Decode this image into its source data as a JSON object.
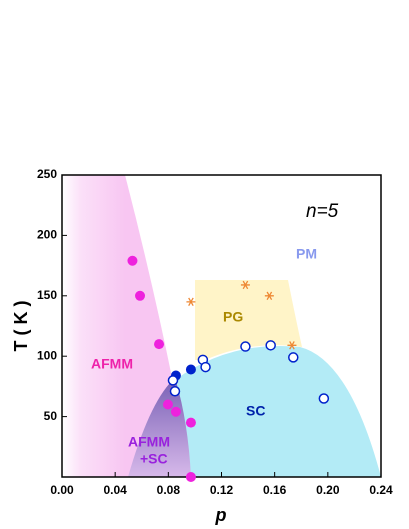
{
  "chart_data": {
    "type": "scatter",
    "x_label": "p",
    "y_label": "T ( K )",
    "xlim": [
      0,
      0.24
    ],
    "ylim": [
      0,
      250
    ],
    "xticks": [
      {
        "value": 0,
        "label": "0.00"
      },
      {
        "value": 0.04,
        "label": "0.04"
      },
      {
        "value": 0.08,
        "label": "0.08"
      },
      {
        "value": 0.12,
        "label": "0.12"
      },
      {
        "value": 0.16,
        "label": "0.16"
      },
      {
        "value": 0.2,
        "label": "0.20"
      },
      {
        "value": 0.24,
        "label": "0.24"
      }
    ],
    "yticks": [
      50,
      100,
      150,
      200,
      250
    ],
    "series": [
      {
        "color": "#ee22dd",
        "marker": "filled",
        "x": [
          0.053,
          0.0587,
          0.073,
          0.0797,
          0.0857,
          0.097,
          0.097
        ],
        "y": [
          179,
          150,
          110,
          60,
          54,
          45,
          0
        ]
      },
      {
        "color": "#0022cc",
        "marker": "filled",
        "x": [
          0.0857,
          0.097
        ],
        "y": [
          84,
          89
        ]
      },
      {
        "color": "#0022cc",
        "marker": "open",
        "x": [
          0.0835,
          0.085,
          0.106,
          0.108,
          0.138,
          0.157,
          0.174,
          0.197
        ],
        "y": [
          80,
          71,
          97,
          91,
          108,
          109,
          99,
          65
        ]
      },
      {
        "color": "#ee8833",
        "marker": "star",
        "x": [
          0.097,
          0.138,
          0.156,
          0.173
        ],
        "y": [
          145,
          159,
          150,
          109
        ]
      }
    ],
    "annotations": [
      {
        "text": "n=5",
        "color": "#000000"
      },
      {
        "text": "PM",
        "color": "#8899ee"
      },
      {
        "text": "PG",
        "color": "#aa8800"
      },
      {
        "text": "AFMM",
        "color": "#ee22aa"
      },
      {
        "text": "SC",
        "color": "#0022aa"
      },
      {
        "text": "AFMM",
        "color": "#9922dd"
      },
      {
        "text": "+SC",
        "color": "#9922dd"
      }
    ]
  }
}
